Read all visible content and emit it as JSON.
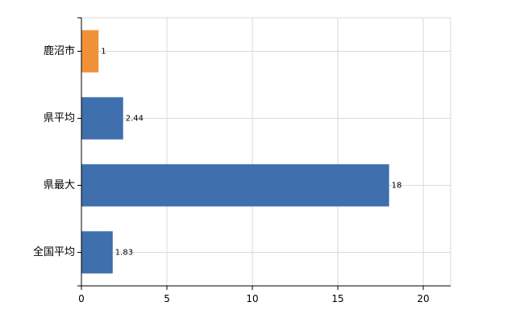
{
  "chart_data": {
    "type": "bar",
    "orientation": "horizontal",
    "categories": [
      "鹿沼市",
      "県平均",
      "県最大",
      "全国平均"
    ],
    "values": [
      1,
      2.44,
      18,
      1.83
    ],
    "data_labels": [
      "1",
      "2.44",
      "18",
      "1.83"
    ],
    "colors": [
      "#f0913a",
      "#3f6fac",
      "#3f6fac",
      "#3f6fac"
    ],
    "xlim": [
      0,
      21.6
    ],
    "xticks": [
      0,
      5,
      10,
      15,
      20
    ],
    "xtick_labels": [
      "0",
      "5",
      "10",
      "15",
      "20"
    ],
    "grid": true,
    "legend": "none",
    "title": "",
    "xlabel": "",
    "ylabel": ""
  }
}
